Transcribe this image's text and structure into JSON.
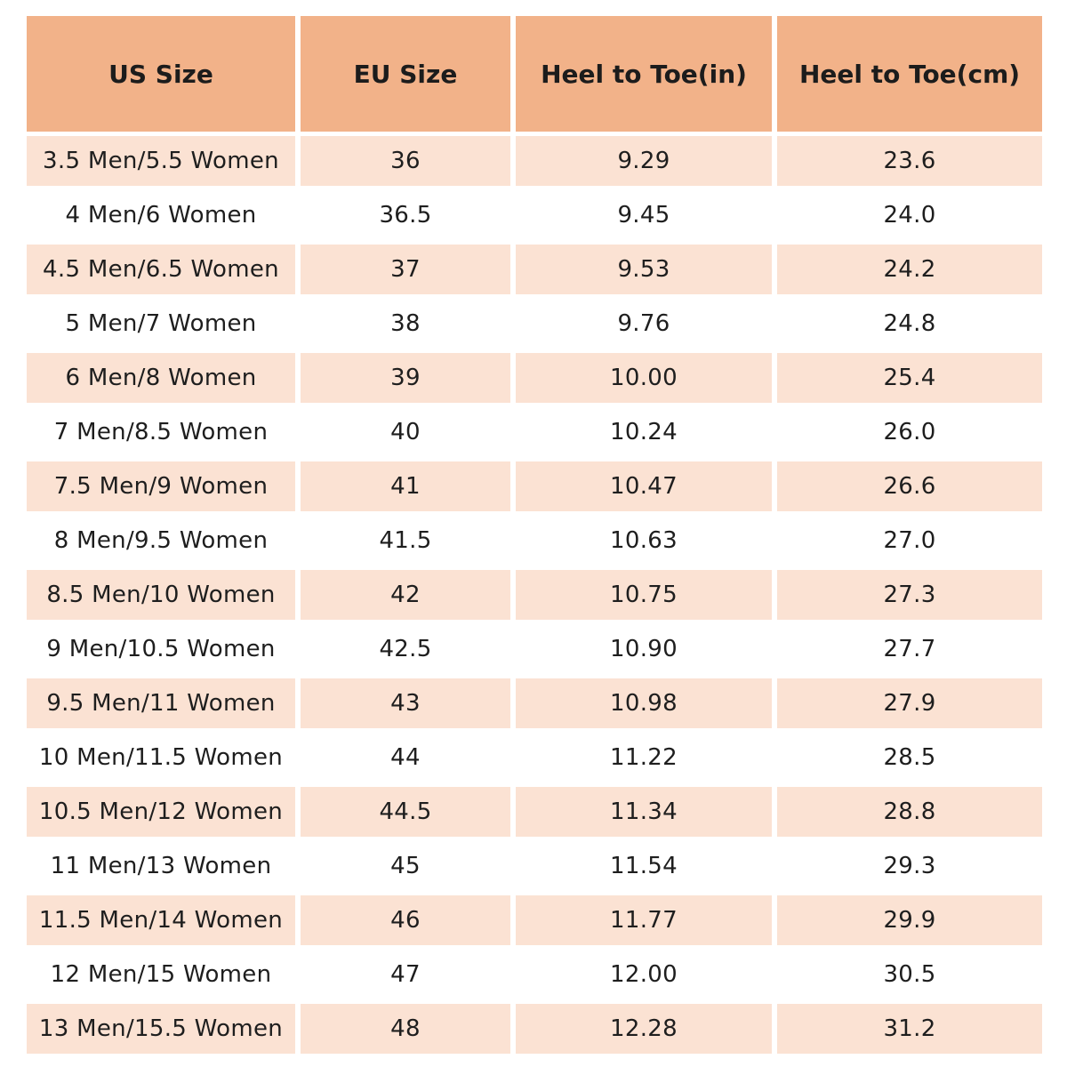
{
  "colors": {
    "header_bg": "#f2b289",
    "band_bg": "#fbe2d3",
    "plain_bg": "#ffffff",
    "text": "#1e1e1e"
  },
  "table": {
    "headers": [
      "US Size",
      "EU Size",
      "Heel to Toe(in)",
      "Heel to Toe(cm)"
    ],
    "rows": [
      [
        "3.5 Men/5.5 Women",
        "36",
        "9.29",
        "23.6"
      ],
      [
        "4 Men/6 Women",
        "36.5",
        "9.45",
        "24.0"
      ],
      [
        "4.5 Men/6.5 Women",
        "37",
        "9.53",
        "24.2"
      ],
      [
        "5 Men/7 Women",
        "38",
        "9.76",
        "24.8"
      ],
      [
        "6 Men/8 Women",
        "39",
        "10.00",
        "25.4"
      ],
      [
        "7 Men/8.5 Women",
        "40",
        "10.24",
        "26.0"
      ],
      [
        "7.5 Men/9 Women",
        "41",
        "10.47",
        "26.6"
      ],
      [
        "8 Men/9.5 Women",
        "41.5",
        "10.63",
        "27.0"
      ],
      [
        "8.5 Men/10 Women",
        "42",
        "10.75",
        "27.3"
      ],
      [
        "9 Men/10.5 Women",
        "42.5",
        "10.90",
        "27.7"
      ],
      [
        "9.5 Men/11 Women",
        "43",
        "10.98",
        "27.9"
      ],
      [
        "10 Men/11.5 Women",
        "44",
        "11.22",
        "28.5"
      ],
      [
        "10.5 Men/12 Women",
        "44.5",
        "11.34",
        "28.8"
      ],
      [
        "11 Men/13 Women",
        "45",
        "11.54",
        "29.3"
      ],
      [
        "11.5 Men/14 Women",
        "46",
        "11.77",
        "29.9"
      ],
      [
        "12 Men/15 Women",
        "47",
        "12.00",
        "30.5"
      ],
      [
        "13 Men/15.5 Women",
        "48",
        "12.28",
        "31.2"
      ]
    ]
  }
}
